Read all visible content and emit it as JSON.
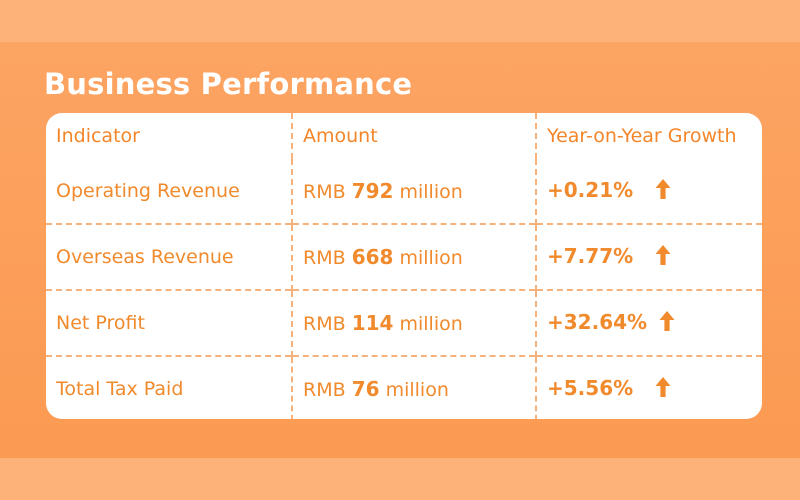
{
  "title": "Business Performance",
  "table": {
    "headers": [
      "Indicator",
      "Amount",
      "Year-on-Year Growth"
    ],
    "rows": [
      {
        "indicator": "Operating Revenue",
        "currency": "RMB",
        "value": "792",
        "unit": "million",
        "growth": "+0.21%",
        "trend": "up-arrow-icon"
      },
      {
        "indicator": "Overseas Revenue",
        "currency": "RMB",
        "value": "668",
        "unit": "million",
        "growth": "+7.77%",
        "trend": "up-arrow-icon"
      },
      {
        "indicator": "Net Profit",
        "currency": "RMB",
        "value": "114",
        "unit": "million",
        "growth": "+32.64%",
        "trend": "up-arrow-icon"
      },
      {
        "indicator": "Total Tax Paid",
        "currency": "RMB",
        "value": "76",
        "unit": "million",
        "growth": "+5.56%",
        "trend": "up-arrow-icon"
      }
    ]
  },
  "colors": {
    "background": "#fb9a52",
    "accent": "#f08a2c",
    "card": "#ffffff",
    "divider": "#f6b27a"
  }
}
